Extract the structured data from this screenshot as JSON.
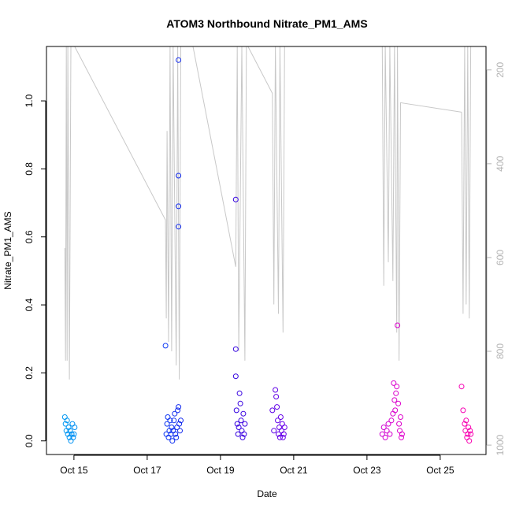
{
  "chart_data": {
    "type": "scatter",
    "title": "ATOM3 Northbound Nitrate_PM1_AMS",
    "xlabel": "Date",
    "ylabel": "Nitrate_PM1_AMS",
    "xlim": [
      "2016-10-14 06:00",
      "2016-10-26 06:00"
    ],
    "ylim": [
      -0.04,
      1.16
    ],
    "x_ticks": [
      {
        "date": "2016-10-15",
        "label": "Oct 15"
      },
      {
        "date": "2016-10-17",
        "label": "Oct 17"
      },
      {
        "date": "2016-10-19",
        "label": "Oct 19"
      },
      {
        "date": "2016-10-21",
        "label": "Oct 21"
      },
      {
        "date": "2016-10-23",
        "label": "Oct 23"
      },
      {
        "date": "2016-10-25",
        "label": "Oct 25"
      }
    ],
    "y_ticks": [
      {
        "value": 0.0,
        "label": "0.0"
      },
      {
        "value": 0.2,
        "label": "0.2"
      },
      {
        "value": 0.4,
        "label": "0.4"
      },
      {
        "value": 0.6,
        "label": "0.6"
      },
      {
        "value": 0.8,
        "label": "0.8"
      },
      {
        "value": 1.0,
        "label": "1.0"
      }
    ],
    "right_axis": {
      "color": "#b3b3b3",
      "reversed": true,
      "range": [
        1020,
        150
      ],
      "ticks": [
        {
          "value": 200,
          "label": "200"
        },
        {
          "value": 400,
          "label": "400"
        },
        {
          "value": 600,
          "label": "600"
        },
        {
          "value": 800,
          "label": "800"
        },
        {
          "value": 1000,
          "label": "1000"
        }
      ]
    },
    "grid": false,
    "legend": "none",
    "colors": {
      "scatter_gradient": [
        "#00aaee",
        "#0055ff",
        "#2200dd",
        "#8800ee",
        "#dd00cc",
        "#ff00aa"
      ],
      "altitude_line": "#c8c8c8"
    },
    "series": [
      {
        "points": [
          [
            "2016-10-14 18:00",
            0.07
          ],
          [
            "2016-10-14 18:30",
            0.05
          ],
          [
            "2016-10-14 19:00",
            0.03
          ],
          [
            "2016-10-14 19:30",
            0.06
          ],
          [
            "2016-10-14 20:00",
            0.02
          ],
          [
            "2016-10-14 20:30",
            0.04
          ],
          [
            "2016-10-14 21:00",
            0.01
          ],
          [
            "2016-10-14 21:30",
            0.03
          ],
          [
            "2016-10-14 22:00",
            0.0
          ],
          [
            "2016-10-14 22:30",
            0.02
          ],
          [
            "2016-10-14 23:00",
            0.05
          ],
          [
            "2016-10-14 23:30",
            0.01
          ],
          [
            "2016-10-15 00:00",
            0.02
          ],
          [
            "2016-10-15 00:30",
            0.04
          ],
          [
            "2016-10-17 12:00",
            0.28
          ],
          [
            "2016-10-17 12:30",
            0.02
          ],
          [
            "2016-10-17 13:00",
            0.05
          ],
          [
            "2016-10-17 13:30",
            0.07
          ],
          [
            "2016-10-17 14:00",
            0.01
          ],
          [
            "2016-10-17 14:30",
            0.03
          ],
          [
            "2016-10-17 15:00",
            0.06
          ],
          [
            "2016-10-17 15:30",
            0.02
          ],
          [
            "2016-10-17 16:00",
            0.04
          ],
          [
            "2016-10-17 16:30",
            0.0
          ],
          [
            "2016-10-17 17:00",
            0.03
          ],
          [
            "2016-10-17 17:30",
            0.06
          ],
          [
            "2016-10-17 18:00",
            0.08
          ],
          [
            "2016-10-17 18:30",
            0.02
          ],
          [
            "2016-10-17 19:00",
            0.01
          ],
          [
            "2016-10-17 19:30",
            0.04
          ],
          [
            "2016-10-17 20:00",
            0.09
          ],
          [
            "2016-10-17 20:30",
            0.1
          ],
          [
            "2016-10-17 21:00",
            0.05
          ],
          [
            "2016-10-17 21:30",
            0.03
          ],
          [
            "2016-10-17 22:00",
            0.06
          ],
          [
            "2016-10-17 20:30",
            1.12
          ],
          [
            "2016-10-17 20:30",
            0.78
          ],
          [
            "2016-10-17 20:30",
            0.69
          ],
          [
            "2016-10-17 20:30",
            0.63
          ],
          [
            "2016-10-19 10:00",
            0.71
          ],
          [
            "2016-10-19 10:00",
            0.27
          ],
          [
            "2016-10-19 10:00",
            0.19
          ],
          [
            "2016-10-19 10:30",
            0.09
          ],
          [
            "2016-10-19 11:00",
            0.05
          ],
          [
            "2016-10-19 11:30",
            0.02
          ],
          [
            "2016-10-19 12:00",
            0.04
          ],
          [
            "2016-10-19 12:30",
            0.14
          ],
          [
            "2016-10-19 13:00",
            0.11
          ],
          [
            "2016-10-19 13:30",
            0.06
          ],
          [
            "2016-10-19 14:00",
            0.03
          ],
          [
            "2016-10-19 14:30",
            0.01
          ],
          [
            "2016-10-19 15:00",
            0.08
          ],
          [
            "2016-10-19 15:30",
            0.02
          ],
          [
            "2016-10-19 16:00",
            0.05
          ],
          [
            "2016-10-20 10:00",
            0.09
          ],
          [
            "2016-10-20 11:00",
            0.03
          ],
          [
            "2016-10-20 12:00",
            0.15
          ],
          [
            "2016-10-20 12:30",
            0.13
          ],
          [
            "2016-10-20 13:00",
            0.1
          ],
          [
            "2016-10-20 13:30",
            0.06
          ],
          [
            "2016-10-20 14:00",
            0.02
          ],
          [
            "2016-10-20 14:30",
            0.04
          ],
          [
            "2016-10-20 15:00",
            0.01
          ],
          [
            "2016-10-20 15:30",
            0.07
          ],
          [
            "2016-10-20 16:00",
            0.03
          ],
          [
            "2016-10-20 16:30",
            0.05
          ],
          [
            "2016-10-20 17:00",
            0.01
          ],
          [
            "2016-10-20 17:30",
            0.02
          ],
          [
            "2016-10-20 18:00",
            0.04
          ],
          [
            "2016-10-23 10:00",
            0.02
          ],
          [
            "2016-10-23 11:00",
            0.04
          ],
          [
            "2016-10-23 12:00",
            0.01
          ],
          [
            "2016-10-23 13:00",
            0.03
          ],
          [
            "2016-10-23 14:00",
            0.05
          ],
          [
            "2016-10-23 15:00",
            0.02
          ],
          [
            "2016-10-23 16:00",
            0.06
          ],
          [
            "2016-10-23 17:00",
            0.08
          ],
          [
            "2016-10-23 17:30",
            0.17
          ],
          [
            "2016-10-23 18:00",
            0.12
          ],
          [
            "2016-10-23 18:30",
            0.09
          ],
          [
            "2016-10-23 19:00",
            0.14
          ],
          [
            "2016-10-23 19:30",
            0.16
          ],
          [
            "2016-10-23 20:00",
            0.34
          ],
          [
            "2016-10-23 20:30",
            0.11
          ],
          [
            "2016-10-23 21:00",
            0.05
          ],
          [
            "2016-10-23 21:30",
            0.03
          ],
          [
            "2016-10-23 22:00",
            0.07
          ],
          [
            "2016-10-23 22:30",
            0.01
          ],
          [
            "2016-10-23 23:00",
            0.02
          ],
          [
            "2016-10-25 14:00",
            0.16
          ],
          [
            "2016-10-25 15:00",
            0.09
          ],
          [
            "2016-10-25 16:00",
            0.05
          ],
          [
            "2016-10-25 16:30",
            0.03
          ],
          [
            "2016-10-25 17:00",
            0.06
          ],
          [
            "2016-10-25 17:30",
            0.01
          ],
          [
            "2016-10-25 18:00",
            0.02
          ],
          [
            "2016-10-25 18:30",
            0.04
          ],
          [
            "2016-10-25 19:00",
            0.0
          ],
          [
            "2016-10-25 19:30",
            0.03
          ],
          [
            "2016-10-25 20:00",
            0.02
          ]
        ]
      }
    ],
    "altitude_segments": [
      [
        [
          "2016-10-14 18:00",
          580
        ],
        [
          "2016-10-14 18:30",
          820
        ],
        [
          "2016-10-14 19:00",
          150
        ],
        [
          "2016-10-14 19:30",
          820
        ],
        [
          "2016-10-14 20:00",
          150
        ],
        [
          "2016-10-14 21:00",
          860
        ],
        [
          "2016-10-14 22:00",
          150
        ],
        [
          "2016-10-15 00:30",
          150
        ]
      ],
      [
        [
          "2016-10-15 00:30",
          150
        ],
        [
          "2016-10-17 12:00",
          520
        ],
        [
          "2016-10-17 12:30",
          730
        ],
        [
          "2016-10-17 13:00",
          330
        ],
        [
          "2016-10-17 14:00",
          780
        ],
        [
          "2016-10-17 15:00",
          150
        ],
        [
          "2016-10-17 16:00",
          800
        ],
        [
          "2016-10-17 17:00",
          150
        ],
        [
          "2016-10-17 19:00",
          830
        ],
        [
          "2016-10-17 20:00",
          150
        ],
        [
          "2016-10-17 21:00",
          860
        ],
        [
          "2016-10-17 22:00",
          150
        ]
      ],
      [
        [
          "2016-10-18 06:00",
          150
        ],
        [
          "2016-10-19 10:00",
          620
        ],
        [
          "2016-10-19 11:00",
          150
        ],
        [
          "2016-10-19 12:00",
          800
        ],
        [
          "2016-10-19 14:00",
          150
        ],
        [
          "2016-10-19 16:00",
          820
        ],
        [
          "2016-10-19 17:00",
          150
        ]
      ],
      [
        [
          "2016-10-19 18:00",
          150
        ],
        [
          "2016-10-20 10:00",
          250
        ],
        [
          "2016-10-20 11:00",
          700
        ],
        [
          "2016-10-20 12:00",
          150
        ],
        [
          "2016-10-20 14:00",
          720
        ],
        [
          "2016-10-20 15:00",
          150
        ],
        [
          "2016-10-20 17:00",
          760
        ],
        [
          "2016-10-20 18:00",
          150
        ]
      ],
      [
        [
          "2016-10-23 10:00",
          150
        ],
        [
          "2016-10-23 11:00",
          660
        ],
        [
          "2016-10-23 12:00",
          150
        ],
        [
          "2016-10-23 14:00",
          610
        ],
        [
          "2016-10-23 15:00",
          150
        ],
        [
          "2016-10-23 17:00",
          650
        ],
        [
          "2016-10-23 18:00",
          150
        ],
        [
          "2016-10-23 19:30",
          760
        ],
        [
          "2016-10-23 20:00",
          150
        ],
        [
          "2016-10-23 21:00",
          820
        ],
        [
          "2016-10-23 22:00",
          270
        ],
        [
          "2016-10-25 14:00",
          290
        ]
      ],
      [
        [
          "2016-10-25 14:00",
          290
        ],
        [
          "2016-10-25 15:00",
          720
        ],
        [
          "2016-10-25 16:00",
          150
        ],
        [
          "2016-10-25 17:00",
          700
        ],
        [
          "2016-10-25 18:00",
          150
        ],
        [
          "2016-10-25 19:00",
          730
        ],
        [
          "2016-10-25 20:00",
          150
        ]
      ]
    ]
  }
}
